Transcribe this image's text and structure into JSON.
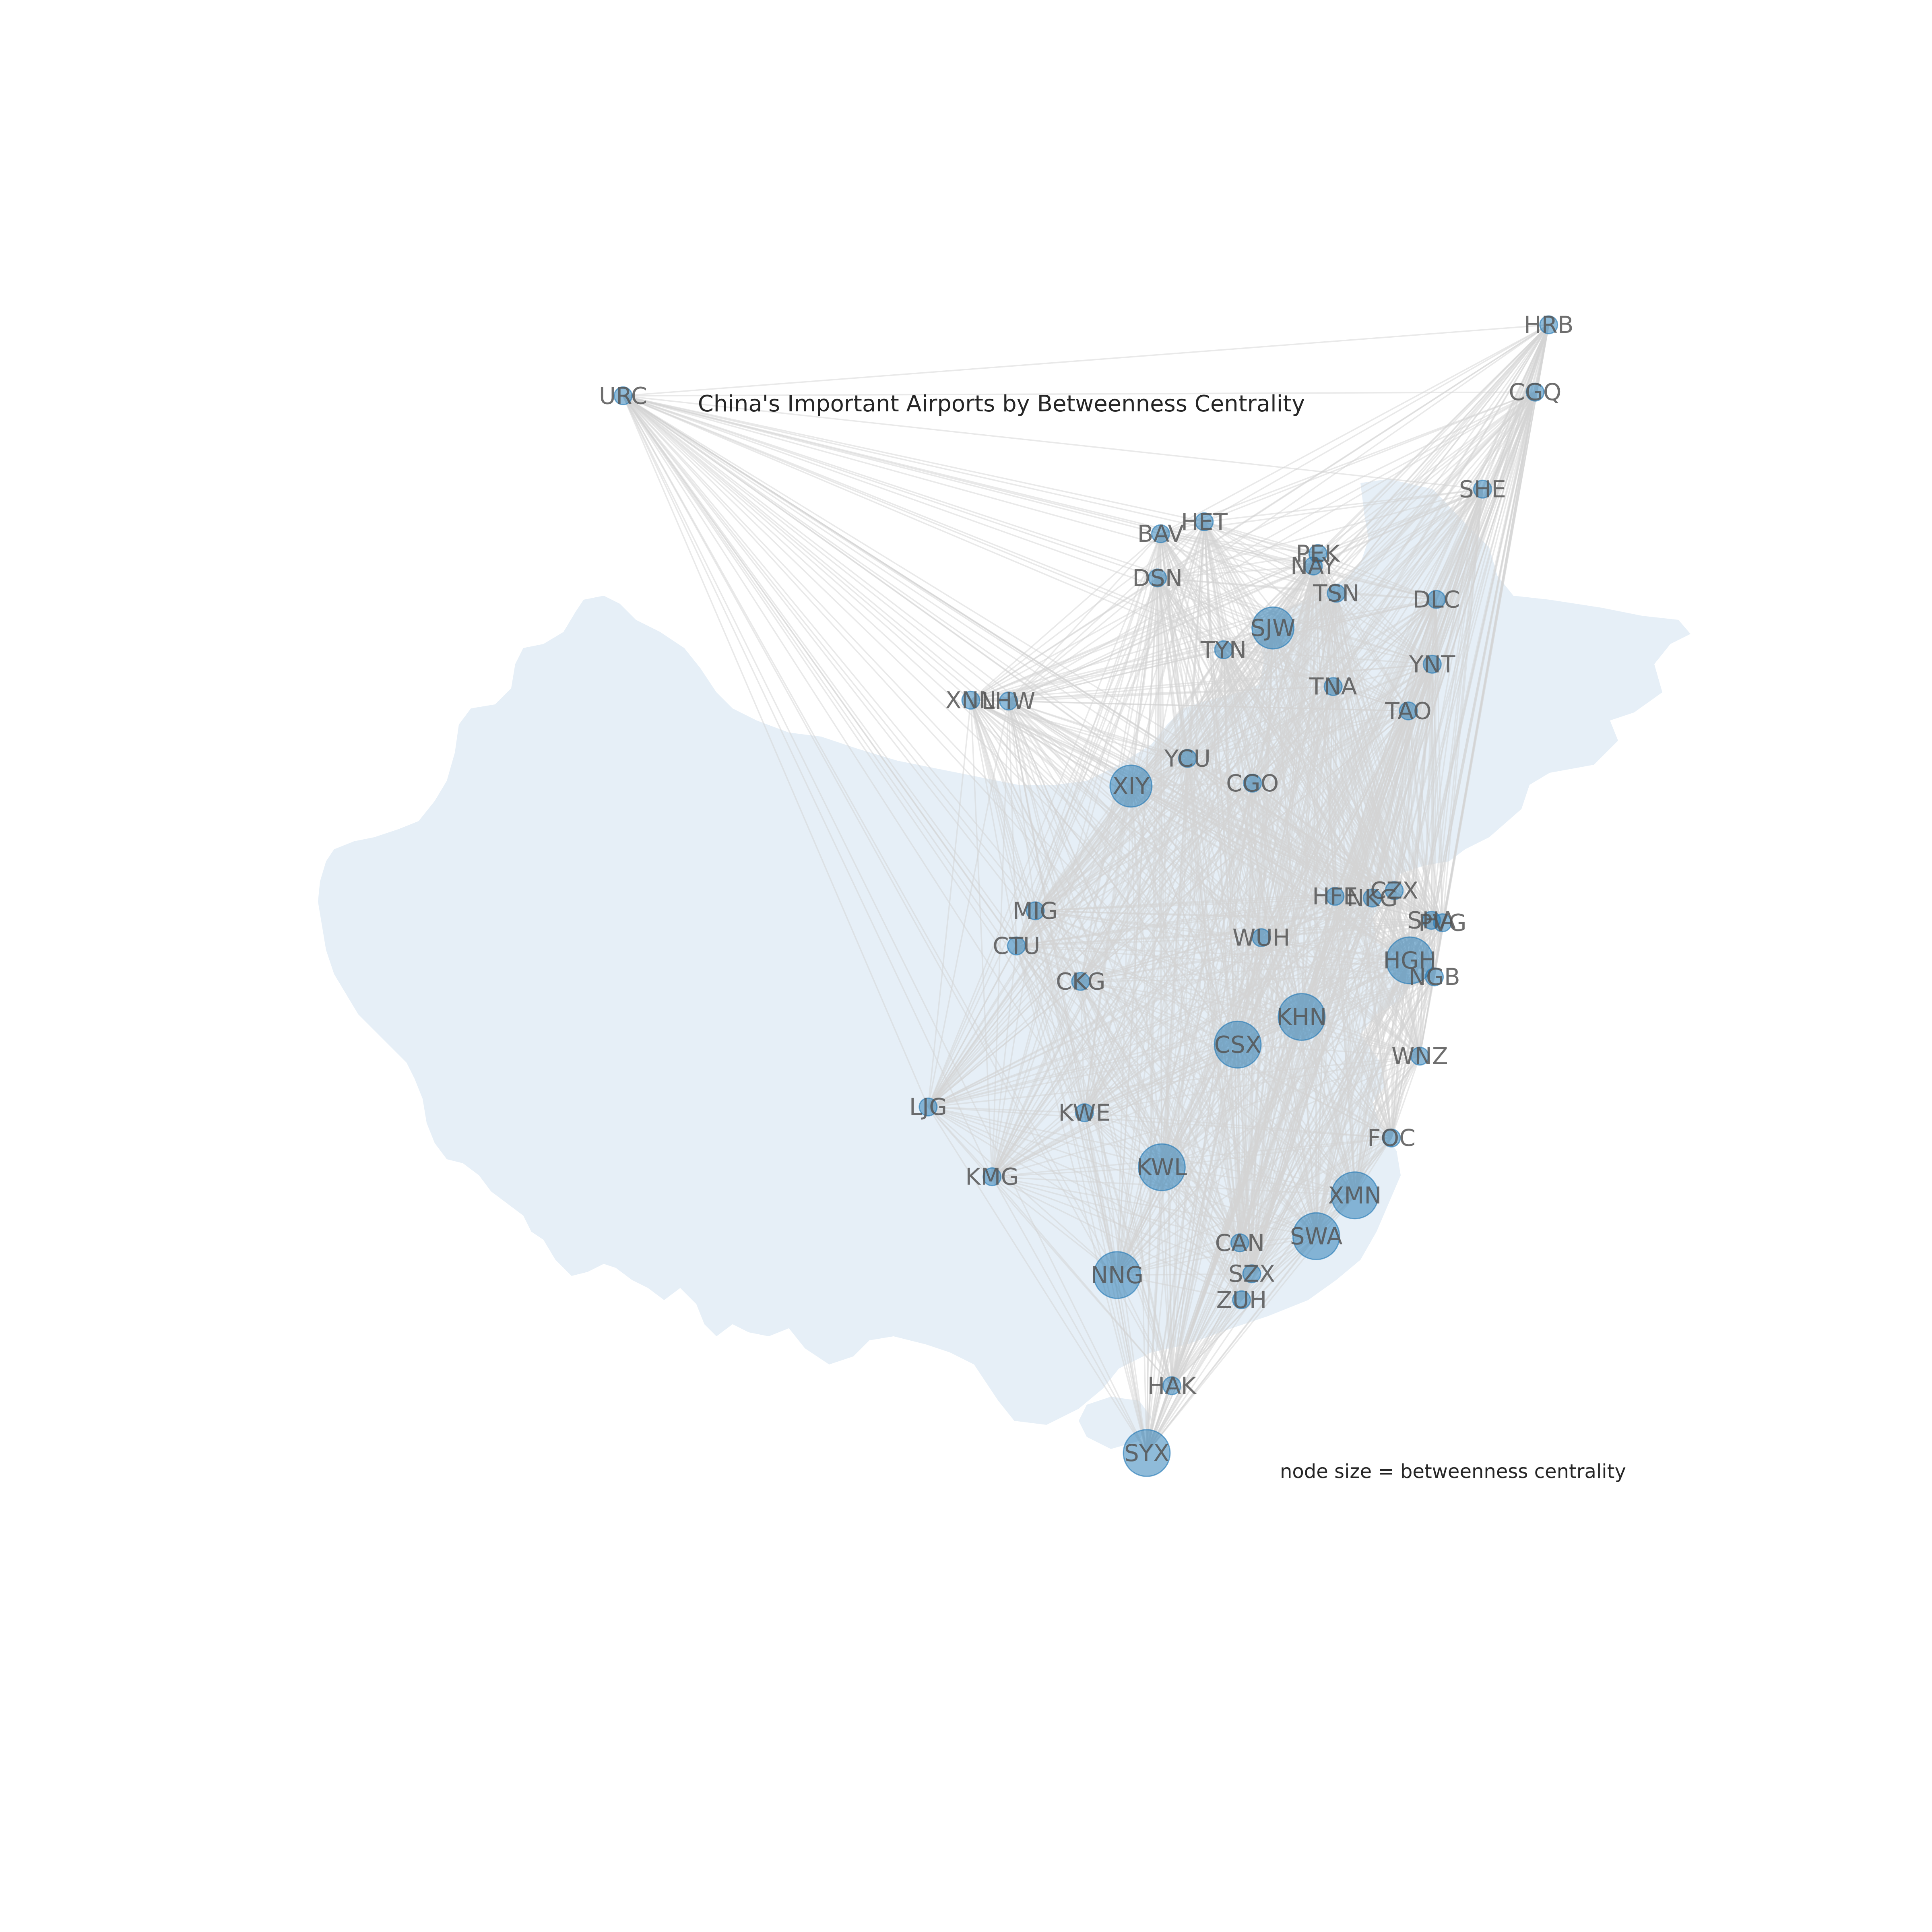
{
  "title": "China's Important Airports by Betweenness Centrality",
  "note": "node size = betweenness centrality",
  "colors": {
    "land": "#e6eff7",
    "node": "#1f77b4",
    "edge": "#d4d4d4",
    "label": "#555555"
  },
  "airports": [
    {
      "code": "URC",
      "lon": 87.47,
      "lat": 43.9,
      "size": 1
    },
    {
      "code": "HRB",
      "lon": 126.25,
      "lat": 45.62,
      "size": 1
    },
    {
      "code": "CGQ",
      "lon": 125.68,
      "lat": 43.99,
      "size": 1
    },
    {
      "code": "SHE",
      "lon": 123.48,
      "lat": 41.64,
      "size": 1
    },
    {
      "code": "HET",
      "lon": 111.82,
      "lat": 40.85,
      "size": 1
    },
    {
      "code": "BAV",
      "lon": 109.99,
      "lat": 40.56,
      "size": 1
    },
    {
      "code": "DSN",
      "lon": 109.86,
      "lat": 39.49,
      "size": 1
    },
    {
      "code": "PEK",
      "lon": 116.58,
      "lat": 40.08,
      "size": 1
    },
    {
      "code": "NAY",
      "lon": 116.39,
      "lat": 39.78,
      "size": 1
    },
    {
      "code": "TSN",
      "lon": 117.35,
      "lat": 39.12,
      "size": 1
    },
    {
      "code": "DLC",
      "lon": 121.54,
      "lat": 38.97,
      "size": 1
    },
    {
      "code": "SJW",
      "lon": 114.7,
      "lat": 38.28,
      "size": 3
    },
    {
      "code": "TYN",
      "lon": 112.63,
      "lat": 37.75,
      "size": 1
    },
    {
      "code": "YNT",
      "lon": 121.37,
      "lat": 37.4,
      "size": 1
    },
    {
      "code": "TNA",
      "lon": 117.22,
      "lat": 36.86,
      "size": 1
    },
    {
      "code": "TAO",
      "lon": 120.37,
      "lat": 36.27,
      "size": 1
    },
    {
      "code": "XNN",
      "lon": 102.04,
      "lat": 36.53,
      "size": 1
    },
    {
      "code": "LHW",
      "lon": 103.62,
      "lat": 36.51,
      "size": 1
    },
    {
      "code": "YCU",
      "lon": 111.12,
      "lat": 35.12,
      "size": 1
    },
    {
      "code": "XIY",
      "lon": 108.75,
      "lat": 34.45,
      "size": 3
    },
    {
      "code": "CGO",
      "lon": 113.84,
      "lat": 34.52,
      "size": 1
    },
    {
      "code": "HFE",
      "lon": 117.3,
      "lat": 31.78,
      "size": 1
    },
    {
      "code": "NKG",
      "lon": 118.86,
      "lat": 31.74,
      "size": 1
    },
    {
      "code": "CZX",
      "lon": 119.78,
      "lat": 31.92,
      "size": 1
    },
    {
      "code": "SHA",
      "lon": 121.34,
      "lat": 31.2,
      "size": 1
    },
    {
      "code": "PVG",
      "lon": 121.8,
      "lat": 31.14,
      "size": 1
    },
    {
      "code": "MIG",
      "lon": 104.74,
      "lat": 31.43,
      "size": 1
    },
    {
      "code": "CTU",
      "lon": 103.95,
      "lat": 30.58,
      "size": 1
    },
    {
      "code": "WUH",
      "lon": 114.21,
      "lat": 30.78,
      "size": 1
    },
    {
      "code": "HGH",
      "lon": 120.43,
      "lat": 30.23,
      "size": 4
    },
    {
      "code": "NGB",
      "lon": 121.46,
      "lat": 29.83,
      "size": 1
    },
    {
      "code": "CKG",
      "lon": 106.64,
      "lat": 29.72,
      "size": 1
    },
    {
      "code": "KHN",
      "lon": 115.9,
      "lat": 28.86,
      "size": 4
    },
    {
      "code": "CSX",
      "lon": 113.22,
      "lat": 28.19,
      "size": 4
    },
    {
      "code": "WNZ",
      "lon": 120.85,
      "lat": 27.91,
      "size": 1
    },
    {
      "code": "LJG",
      "lon": 100.25,
      "lat": 26.68,
      "size": 1
    },
    {
      "code": "KWE",
      "lon": 106.8,
      "lat": 26.54,
      "size": 1
    },
    {
      "code": "FOC",
      "lon": 119.66,
      "lat": 25.93,
      "size": 1
    },
    {
      "code": "KWL",
      "lon": 110.04,
      "lat": 25.22,
      "size": 4
    },
    {
      "code": "KMG",
      "lon": 102.93,
      "lat": 24.99,
      "size": 1
    },
    {
      "code": "XMN",
      "lon": 118.13,
      "lat": 24.54,
      "size": 4
    },
    {
      "code": "SWA",
      "lon": 116.51,
      "lat": 23.55,
      "size": 4
    },
    {
      "code": "CAN",
      "lon": 113.31,
      "lat": 23.39,
      "size": 1
    },
    {
      "code": "NNG",
      "lon": 108.17,
      "lat": 22.61,
      "size": 4
    },
    {
      "code": "SZX",
      "lon": 113.81,
      "lat": 22.64,
      "size": 1
    },
    {
      "code": "ZUH",
      "lon": 113.38,
      "lat": 22.01,
      "size": 1
    },
    {
      "code": "HAK",
      "lon": 110.46,
      "lat": 19.93,
      "size": 1
    },
    {
      "code": "SYX",
      "lon": 109.41,
      "lat": 18.3,
      "size": 4
    }
  ]
}
